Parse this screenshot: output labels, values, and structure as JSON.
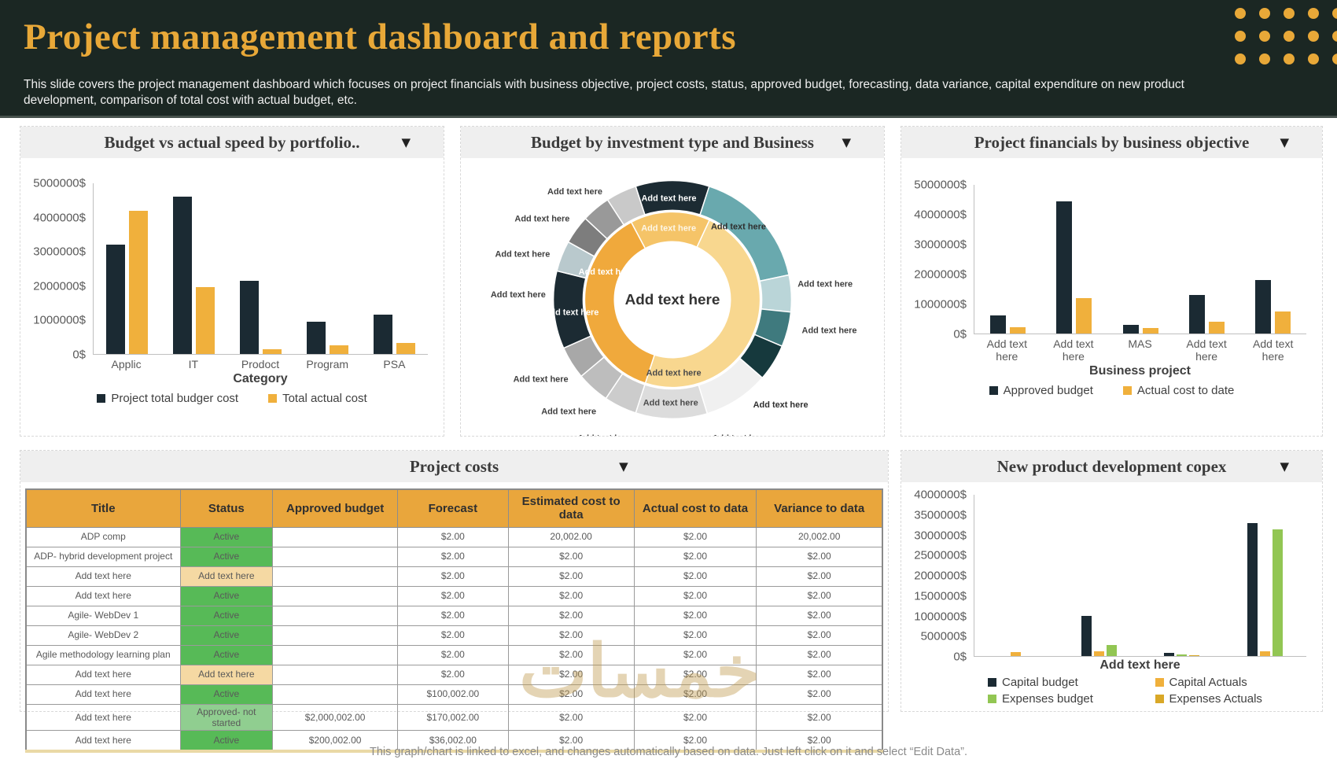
{
  "header": {
    "title": "Project management dashboard and reports",
    "subtitle": "This slide covers the project management dashboard which focuses on project financials with business objective, project costs, status, approved budget, forecasting, data variance, capital expenditure on new product development, comparison of total cost with actual budget, etc."
  },
  "ui": {
    "caret": "▼"
  },
  "colors": {
    "accent_gold": "#E8A838",
    "dark_bar": "#1B2A33",
    "gold_bar": "#F0B03C",
    "green_bar": "#92C653",
    "dark_gold_bar": "#D9A827",
    "header_bg": "#1B2723",
    "status_active": "#57BA57",
    "status_not_started": "#90CE90",
    "status_placeholder": "#F5D9A3",
    "table_header": "#E9A63C"
  },
  "chart_data": [
    {
      "type": "bar",
      "title": "Budget vs actual speed by portfolio..",
      "ylim": [
        0,
        5000000
      ],
      "y_ticks": [
        "5000000$",
        "4000000$",
        "3000000$",
        "2000000$",
        "1000000$",
        "0$"
      ],
      "xlabel": "Category",
      "grid": false,
      "legend_position": "bottom",
      "categories": [
        "Applic",
        "IT",
        "Prodoct",
        "Program",
        "PSA"
      ],
      "series": [
        {
          "name": "Project total budger cost",
          "color": "#1B2A33",
          "values": [
            3200000,
            4600000,
            2150000,
            950000,
            1150000
          ]
        },
        {
          "name": "Total actual cost",
          "color": "#F0B03C",
          "values": [
            4200000,
            1950000,
            150000,
            250000,
            330000
          ]
        }
      ]
    },
    {
      "type": "pie",
      "variant": "double-ring-donut",
      "title": "Budget by investment type and Business",
      "center_label": "Add text here",
      "segment_label": "Add text here",
      "outer_segments": [
        {
          "a0": 342,
          "a1": 378,
          "color": "#1C2B33"
        },
        {
          "a0": 18,
          "a1": 78,
          "color": "#69A9AE"
        },
        {
          "a0": 78,
          "a1": 96,
          "color": "#BAD5D8"
        },
        {
          "a0": 96,
          "a1": 113,
          "color": "#3F7A7E"
        },
        {
          "a0": 113,
          "a1": 131,
          "color": "#16393D"
        },
        {
          "a0": 131,
          "a1": 163,
          "color": "#F0F0F0"
        },
        {
          "a0": 163,
          "a1": 198,
          "color": "#DCDCDC"
        },
        {
          "a0": 198,
          "a1": 214,
          "color": "#CCCCCC"
        },
        {
          "a0": 214,
          "a1": 230,
          "color": "#BDBDBD"
        },
        {
          "a0": 230,
          "a1": 246,
          "color": "#A8A8A8"
        },
        {
          "a0": 246,
          "a1": 284,
          "color": "#1C2B33"
        },
        {
          "a0": 284,
          "a1": 299,
          "color": "#B9C9CD"
        },
        {
          "a0": 299,
          "a1": 313,
          "color": "#7D7D7D"
        },
        {
          "a0": 313,
          "a1": 327,
          "color": "#999999"
        },
        {
          "a0": 327,
          "a1": 342,
          "color": "#C9C9C9"
        }
      ],
      "inner_segments": [
        {
          "a0": 332,
          "a1": 385,
          "color": "#F5C468"
        },
        {
          "a0": 25,
          "a1": 198,
          "color": "#F8D78F"
        },
        {
          "a0": 198,
          "a1": 332,
          "color": "#F0A93C"
        }
      ],
      "labels": [
        {
          "a": 358,
          "r": 130,
          "color": "#FFFFFF"
        },
        {
          "a": 357,
          "r": 92,
          "color": "#FDF6E6"
        },
        {
          "a": 42,
          "r": 126,
          "color": "#2F2F2F"
        },
        {
          "a": 84,
          "r": 196,
          "color": "#3F3F3F"
        },
        {
          "a": 101,
          "r": 204,
          "color": "#3F3F3F"
        },
        {
          "a": 117,
          "r": 186,
          "color": "#FFFFFF"
        },
        {
          "a": 134,
          "r": 192,
          "color": "#2F2F2F"
        },
        {
          "a": 154,
          "r": 196,
          "color": "#3F3F3F"
        },
        {
          "a": 181,
          "r": 131,
          "color": "#4A4A4A"
        },
        {
          "a": 179,
          "r": 93,
          "color": "#4A4A4A"
        },
        {
          "a": 206,
          "r": 196,
          "color": "#3F3F3F"
        },
        {
          "a": 223,
          "r": 194,
          "color": "#3F3F3F"
        },
        {
          "a": 239,
          "r": 196,
          "color": "#3F3F3F"
        },
        {
          "a": 263,
          "r": 130,
          "color": "#FFFFFF"
        },
        {
          "a": 272,
          "r": 197,
          "color": "#3F3F3F"
        },
        {
          "a": 287,
          "r": 200,
          "color": "#3F3F3F"
        },
        {
          "a": 302,
          "r": 196,
          "color": "#3F3F3F"
        },
        {
          "a": 318,
          "r": 186,
          "color": "#3F3F3F"
        },
        {
          "a": 293,
          "r": 92,
          "color": "#FFFFFF"
        }
      ]
    },
    {
      "type": "bar",
      "title": "Project financials by business objective",
      "ylim": [
        0,
        5000000
      ],
      "y_ticks": [
        "5000000$",
        "4000000$",
        "3000000$",
        "2000000$",
        "1000000$",
        "0$"
      ],
      "xlabel": "Business project",
      "grid": false,
      "legend_position": "bottom",
      "categories": [
        "Add text\nhere",
        "Add text\nhere",
        "MAS",
        "Add text\nhere",
        "Add text\nhere"
      ],
      "series": [
        {
          "name": "Approved budget",
          "color": "#1B2A33",
          "values": [
            600000,
            4450000,
            300000,
            1300000,
            1800000
          ]
        },
        {
          "name": "Actual cost to date",
          "color": "#F0B03C",
          "values": [
            200000,
            1200000,
            180000,
            400000,
            730000
          ]
        }
      ]
    },
    {
      "type": "table",
      "title": "Project costs",
      "columns": [
        "Title",
        "Status",
        "Approved budget",
        "Forecast",
        "Estimated cost to data",
        "Actual cost to data",
        "Variance to data"
      ],
      "col_widths": [
        "18%",
        "10.8%",
        "14.6%",
        "12.9%",
        "14.7%",
        "14.3%",
        "14.7%"
      ],
      "rows": [
        {
          "title": "ADP comp",
          "status": "Active",
          "status_type": "active",
          "approved": "",
          "forecast": "$2.00",
          "estimated": "20,002.00",
          "actual": "$2.00",
          "variance": "20,002.00"
        },
        {
          "title": "ADP- hybrid development  project",
          "status": "Active",
          "status_type": "active",
          "approved": "",
          "forecast": "$2.00",
          "estimated": "$2.00",
          "actual": "$2.00",
          "variance": "$2.00"
        },
        {
          "title": "Add text here",
          "status": "Add text here",
          "status_type": "placeholder",
          "approved": "",
          "forecast": "$2.00",
          "estimated": "$2.00",
          "actual": "$2.00",
          "variance": "$2.00"
        },
        {
          "title": "Add text here",
          "status": "Active",
          "status_type": "active",
          "approved": "",
          "forecast": "$2.00",
          "estimated": "$2.00",
          "actual": "$2.00",
          "variance": "$2.00"
        },
        {
          "title": "Agile- WebDev 1",
          "status": "Active",
          "status_type": "active",
          "approved": "",
          "forecast": "$2.00",
          "estimated": "$2.00",
          "actual": "$2.00",
          "variance": "$2.00"
        },
        {
          "title": "Agile- WebDev 2",
          "status": "Active",
          "status_type": "active",
          "approved": "",
          "forecast": "$2.00",
          "estimated": "$2.00",
          "actual": "$2.00",
          "variance": "$2.00"
        },
        {
          "title": "Agile methodology  learning plan",
          "status": "Active",
          "status_type": "active",
          "approved": "",
          "forecast": "$2.00",
          "estimated": "$2.00",
          "actual": "$2.00",
          "variance": "$2.00"
        },
        {
          "title": "Add text here",
          "status": "Add text here",
          "status_type": "placeholder",
          "approved": "",
          "forecast": "$2.00",
          "estimated": "$2.00",
          "actual": "$2.00",
          "variance": "$2.00"
        },
        {
          "title": "Add text here",
          "status": "Active",
          "status_type": "active",
          "approved": "",
          "forecast": "$100,002.00",
          "estimated": "$2.00",
          "actual": "$2.00",
          "variance": "$2.00"
        },
        {
          "title": "Add text here",
          "status": "Approved- not started",
          "status_type": "not_started",
          "approved": "$2,000,002.00",
          "forecast": "$170,002.00",
          "estimated": "$2.00",
          "actual": "$2.00",
          "variance": "$2.00"
        },
        {
          "title": "Add text here",
          "status": "Active",
          "status_type": "active",
          "approved": "$200,002.00",
          "forecast": "$36,002.00",
          "estimated": "$2.00",
          "actual": "$2.00",
          "variance": "$2.00"
        }
      ]
    },
    {
      "type": "bar",
      "title": "New product development copex",
      "ylim": [
        0,
        4000000
      ],
      "y_ticks": [
        "4000000$",
        "3500000$",
        "3000000$",
        "2500000$",
        "2000000$",
        "1500000$",
        "1000000$",
        "500000$",
        "0$"
      ],
      "xlabel": "Add text here",
      "grid": false,
      "legend_position": "bottom-grid",
      "categories": [
        "",
        "",
        "",
        ""
      ],
      "series": [
        {
          "name": "Capital budget",
          "color": "#1B2A33",
          "values": [
            0,
            1000000,
            70000,
            3300000
          ]
        },
        {
          "name": "Capital Actuals",
          "color": "#F0B03C",
          "values": [
            100000,
            120000,
            0,
            110000
          ]
        },
        {
          "name": "Expenses budget",
          "color": "#92C653",
          "values": [
            0,
            280000,
            30000,
            3150000
          ]
        },
        {
          "name": "Expenses Actuals",
          "color": "#D9A827",
          "values": [
            0,
            0,
            20000,
            0
          ]
        }
      ]
    }
  ],
  "footer": {
    "note": "This graph/chart is linked to excel, and changes automatically based on data. Just left click on it and select “Edit Data”."
  },
  "watermark": "خمسات"
}
